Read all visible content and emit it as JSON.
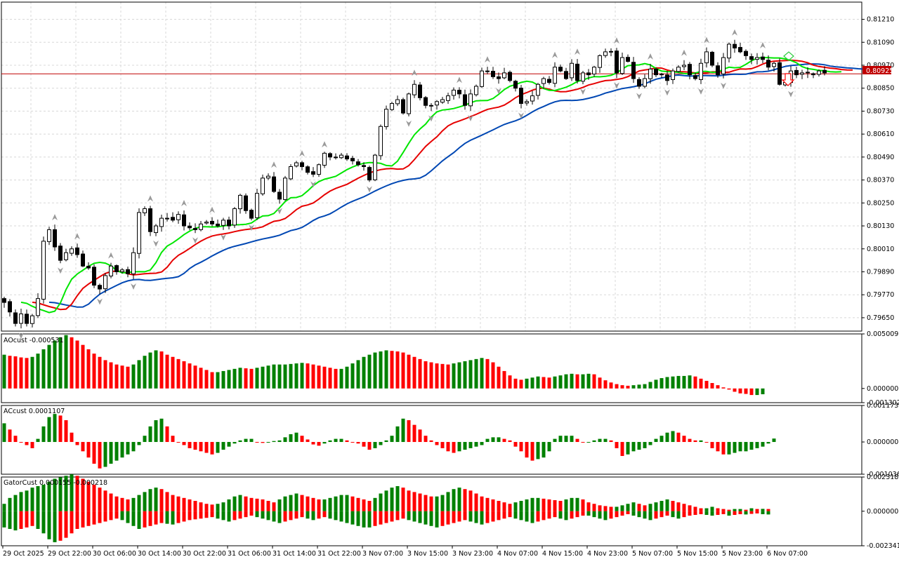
{
  "colors": {
    "bull": "#008000",
    "bear": "#ff0000",
    "lips": "#00e600",
    "teeth": "#e60000",
    "jaw": "#0047b3",
    "price_line": "#c00000",
    "price_tag_bg": "#c00000",
    "grid": "#d8d8d8",
    "fractal": "#9a9a9a",
    "signal_up": "#2ecc40",
    "signal_down": "#ff0000"
  },
  "icons": {
    "signal_up": "diamond-icon",
    "signal_down": "down-arrow-icon",
    "fractal": "fractal-arrow-icon"
  },
  "chart_data": [
    {
      "type": "candlestick",
      "name": "main-price",
      "ylim": [
        0.7958,
        0.813
      ],
      "yticks": [
        "0.81210",
        "0.81090",
        "0.80970",
        "0.80850",
        "0.80730",
        "0.80610",
        "0.80490",
        "0.80370",
        "0.80250",
        "0.80130",
        "0.80010",
        "0.79890",
        "0.79770",
        "0.79650"
      ],
      "current_price": "0.80925",
      "xticks": [
        "29 Oct 2025",
        "29 Oct 22:00",
        "30 Oct 06:00",
        "30 Oct 14:00",
        "30 Oct 22:00",
        "31 Oct 06:00",
        "31 Oct 14:00",
        "31 Oct 22:00",
        "3 Nov 07:00",
        "3 Nov 15:00",
        "3 Nov 23:00",
        "4 Nov 07:00",
        "4 Nov 15:00",
        "4 Nov 23:00",
        "5 Nov 07:00",
        "5 Nov 15:00",
        "5 Nov 23:00",
        "6 Nov 07:00"
      ],
      "close": [
        0.7973,
        0.7968,
        0.7962,
        0.7967,
        0.7962,
        0.7966,
        0.7975,
        0.8005,
        0.8011,
        0.8002,
        0.7995,
        0.7999,
        0.8001,
        0.7998,
        0.7992,
        0.7991,
        0.7982,
        0.798,
        0.7987,
        0.7992,
        0.7989,
        0.799,
        0.7988,
        0.7999,
        0.802,
        0.8022,
        0.801,
        0.8013,
        0.8017,
        0.8017,
        0.8016,
        0.8019,
        0.8013,
        0.8012,
        0.8011,
        0.8014,
        0.8015,
        0.8014,
        0.8013,
        0.8016,
        0.8013,
        0.8022,
        0.8029,
        0.8021,
        0.8017,
        0.803,
        0.8038,
        0.8039,
        0.8031,
        0.8027,
        0.8038,
        0.8044,
        0.8046,
        0.8044,
        0.8041,
        0.804,
        0.8045,
        0.8051,
        0.8049,
        0.8049,
        0.805,
        0.8048,
        0.8047,
        0.8045,
        0.8044,
        0.8037,
        0.805,
        0.8065,
        0.8074,
        0.8077,
        0.8079,
        0.8072,
        0.8082,
        0.8087,
        0.808,
        0.8076,
        0.8076,
        0.8078,
        0.8079,
        0.8081,
        0.8084,
        0.8082,
        0.8076,
        0.8082,
        0.8086,
        0.8094,
        0.8094,
        0.8091,
        0.809,
        0.8093,
        0.8089,
        0.8085,
        0.8077,
        0.8078,
        0.8081,
        0.8087,
        0.809,
        0.8088,
        0.8096,
        0.8094,
        0.809,
        0.8098,
        0.8089,
        0.8093,
        0.8092,
        0.8096,
        0.8102,
        0.8104,
        0.8104,
        0.8093,
        0.8101,
        0.8099,
        0.809,
        0.8086,
        0.809,
        0.8095,
        0.8092,
        0.8092,
        0.8089,
        0.8094,
        0.8096,
        0.8097,
        0.8092,
        0.809,
        0.8098,
        0.8104,
        0.8097,
        0.8092,
        0.8101,
        0.8108,
        0.8106,
        0.8104,
        0.8102,
        0.81,
        0.8101,
        0.81,
        0.8096,
        0.8098,
        0.8087,
        0.8088,
        0.8094,
        0.8092,
        0.8093,
        0.8093,
        0.8092,
        0.8094,
        0.8093
      ]
    },
    {
      "type": "histogram",
      "name": "AOcust",
      "label": "AOcust -0.000531",
      "ylim": [
        -0.001302,
        0.005009
      ],
      "yticks": [
        "0.005009",
        "0.000000",
        "-0.001302"
      ],
      "values": [
        0.0031,
        0.003,
        0.00295,
        0.00285,
        0.0028,
        0.0029,
        0.0032,
        0.0036,
        0.004,
        0.0044,
        0.0047,
        0.0049,
        0.0047,
        0.0044,
        0.004,
        0.0036,
        0.0032,
        0.0029,
        0.0026,
        0.0024,
        0.0022,
        0.0021,
        0.002,
        0.0022,
        0.0026,
        0.003,
        0.0033,
        0.0035,
        0.0034,
        0.0031,
        0.0029,
        0.0027,
        0.0025,
        0.0023,
        0.0021,
        0.0019,
        0.0017,
        0.0015,
        0.0015,
        0.0016,
        0.0017,
        0.0018,
        0.0019,
        0.00185,
        0.0018,
        0.0019,
        0.002,
        0.0021,
        0.0022,
        0.0022,
        0.0022,
        0.00225,
        0.0023,
        0.00235,
        0.0023,
        0.0022,
        0.0021,
        0.002,
        0.0019,
        0.0018,
        0.0018,
        0.002,
        0.0023,
        0.0026,
        0.0029,
        0.0031,
        0.0033,
        0.0034,
        0.0035,
        0.00345,
        0.0034,
        0.0033,
        0.0031,
        0.0029,
        0.0027,
        0.0025,
        0.0024,
        0.0023,
        0.00225,
        0.0022,
        0.0023,
        0.0024,
        0.0025,
        0.0026,
        0.0027,
        0.0028,
        0.0027,
        0.0024,
        0.002,
        0.0016,
        0.0012,
        0.0009,
        0.0008,
        0.0009,
        0.001,
        0.0011,
        0.00105,
        0.001,
        0.0011,
        0.0012,
        0.0013,
        0.00135,
        0.0013,
        0.0013,
        0.00135,
        0.0013,
        0.001,
        0.00075,
        0.00055,
        0.0004,
        0.0003,
        0.00025,
        0.0003,
        0.00035,
        0.0004,
        0.0006,
        0.0008,
        0.00095,
        0.00105,
        0.0011,
        0.00115,
        0.00115,
        0.0012,
        0.0011,
        0.0009,
        0.0007,
        0.0005,
        0.0003,
        0.0001,
        -0.0001,
        -0.0003,
        -0.00045,
        -0.0005,
        -0.0006,
        -0.0006,
        -0.00053
      ]
    },
    {
      "type": "histogram",
      "name": "ACcust",
      "label": "ACcust 0.0001107",
      "ylim": [
        -0.0010366,
        0.0011736
      ],
      "yticks": [
        "0.0011736",
        "0.0000000",
        "-0.0010366"
      ],
      "values": [
        0.0006,
        0.0004,
        0.0002,
        0.0,
        -0.0001,
        -0.0002,
        0.0001,
        0.0005,
        0.0008,
        0.0009,
        0.00085,
        0.0007,
        0.0003,
        -0.0001,
        -0.0003,
        -0.0005,
        -0.0007,
        -0.00085,
        -0.0008,
        -0.0007,
        -0.0006,
        -0.0005,
        -0.0004,
        -0.0003,
        -0.0001,
        0.0002,
        0.0005,
        0.0007,
        0.00075,
        0.0005,
        0.0002,
        0.0,
        -0.0001,
        -0.0002,
        -0.00025,
        -0.0003,
        -0.00035,
        -0.0004,
        -0.00035,
        -0.00025,
        -0.00015,
        -5e-05,
        5e-05,
        0.0001,
        0.0001,
        0.0,
        -3e-05,
        0.0,
        3e-05,
        5e-05,
        0.00015,
        0.00025,
        0.0003,
        0.0002,
        8e-05,
        -8e-05,
        -0.00012,
        -5e-05,
        5e-05,
        0.0001,
        0.0001,
        5e-05,
        0.0,
        -5e-05,
        -0.00015,
        -0.00025,
        -0.0002,
        -0.0001,
        5e-05,
        0.0002,
        0.0005,
        0.00075,
        0.0007,
        0.00055,
        0.0004,
        0.0002,
        5e-05,
        -0.0001,
        -0.0002,
        -0.0003,
        -0.00035,
        -0.0003,
        -0.00025,
        -0.0002,
        -0.00015,
        -0.0001,
        0.0001,
        0.00015,
        0.00015,
        0.0001,
        5e-05,
        -0.00015,
        -0.0003,
        -0.0005,
        -0.0006,
        -0.00055,
        -0.0005,
        -0.0003,
        0.0001,
        0.0002,
        0.0002,
        0.0002,
        0.0001,
        0.0,
        0.0,
        5e-05,
        0.0001,
        0.0001,
        5e-05,
        -0.0002,
        -0.00045,
        -0.0004,
        -0.0003,
        -0.00025,
        -0.0002,
        -0.0001,
        0.0001,
        0.0002,
        0.0003,
        0.00035,
        0.0003,
        0.0002,
        0.0001,
        5e-05,
        5e-05,
        0.0,
        -0.0002,
        -0.0003,
        -0.0004,
        -0.0004,
        -0.00035,
        -0.0003,
        -0.0003,
        -0.00025,
        -0.0002,
        -0.00015,
        -5e-05,
        0.00011
      ]
    },
    {
      "type": "histogram",
      "name": "GatorCust",
      "label": "GatorCust 0.000155 -0.000218",
      "ylim": [
        -0.002341,
        0.002318
      ],
      "yticks": [
        "0.002318",
        "0.000000",
        "-0.002341"
      ],
      "upper": [
        0.0005,
        0.0009,
        0.0011,
        0.0013,
        0.0014,
        0.0016,
        0.0017,
        0.0018,
        0.002,
        0.0022,
        0.0023,
        0.0024,
        0.0025,
        0.0024,
        0.0022,
        0.002,
        0.0018,
        0.0016,
        0.0014,
        0.0012,
        0.001,
        0.0009,
        0.0008,
        0.0009,
        0.0011,
        0.0013,
        0.0015,
        0.0016,
        0.0015,
        0.0013,
        0.0011,
        0.001,
        0.0009,
        0.0008,
        0.0007,
        0.0006,
        0.0005,
        0.00045,
        0.0005,
        0.0006,
        0.0008,
        0.001,
        0.0011,
        0.001,
        0.0009,
        0.00085,
        0.0008,
        0.0007,
        0.0006,
        0.0008,
        0.001,
        0.0011,
        0.0012,
        0.0011,
        0.001,
        0.0009,
        0.0008,
        0.0008,
        0.0009,
        0.001,
        0.0011,
        0.0011,
        0.001,
        0.0009,
        0.0008,
        0.0007,
        0.0009,
        0.0012,
        0.0014,
        0.0016,
        0.0017,
        0.0016,
        0.0014,
        0.0013,
        0.0012,
        0.0011,
        0.001,
        0.001,
        0.0011,
        0.0013,
        0.0015,
        0.0016,
        0.0015,
        0.0014,
        0.0012,
        0.001,
        0.0009,
        0.0008,
        0.0007,
        0.0006,
        0.0005,
        0.0006,
        0.0007,
        0.0008,
        0.0009,
        0.0009,
        0.00085,
        0.0008,
        0.00075,
        0.0007,
        0.0008,
        0.0009,
        0.0009,
        0.0008,
        0.0006,
        0.0005,
        0.0004,
        0.00035,
        0.0003,
        0.0003,
        0.0004,
        0.0005,
        0.0006,
        0.0005,
        0.0004,
        0.0005,
        0.0006,
        0.0007,
        0.0008,
        0.0007,
        0.0006,
        0.0005,
        0.0004,
        0.0003,
        0.0002,
        0.0002,
        0.0003,
        0.0002,
        0.00015,
        0.0001,
        0.00015,
        0.00015,
        0.0001,
        0.0002,
        0.00015,
        0.00016,
        0.00015
      ],
      "lower": [
        -0.0011,
        -0.0012,
        -0.0013,
        -0.0012,
        -0.0011,
        -0.001,
        -0.0012,
        -0.0015,
        -0.0019,
        -0.0021,
        -0.002,
        -0.0018,
        -0.0015,
        -0.0012,
        -0.0011,
        -0.001,
        -0.0009,
        -0.0008,
        -0.0007,
        -0.0006,
        -0.0005,
        -0.0006,
        -0.0008,
        -0.001,
        -0.0012,
        -0.0011,
        -0.001,
        -0.0009,
        -0.0008,
        -0.00085,
        -0.0009,
        -0.0008,
        -0.0007,
        -0.0006,
        -0.00055,
        -0.0005,
        -0.00045,
        -0.0004,
        -0.0005,
        -0.0006,
        -0.0007,
        -0.0006,
        -0.0005,
        -0.0004,
        -0.0003,
        -0.0004,
        -0.0005,
        -0.0006,
        -0.0007,
        -0.0008,
        -0.0007,
        -0.0006,
        -0.0005,
        -0.0004,
        -0.0005,
        -0.0006,
        -0.0005,
        -0.0004,
        -0.0005,
        -0.0006,
        -0.0007,
        -0.0008,
        -0.0009,
        -0.001,
        -0.0011,
        -0.0011,
        -0.001,
        -0.0009,
        -0.0008,
        -0.0007,
        -0.0006,
        -0.0005,
        -0.0006,
        -0.0007,
        -0.0008,
        -0.0009,
        -0.001,
        -0.0011,
        -0.001,
        -0.0009,
        -0.0008,
        -0.0007,
        -0.0006,
        -0.0007,
        -0.0008,
        -0.0009,
        -0.0008,
        -0.0007,
        -0.0006,
        -0.0005,
        -0.0004,
        -0.0005,
        -0.0006,
        -0.0007,
        -0.0008,
        -0.0007,
        -0.0006,
        -0.0005,
        -0.0004,
        -0.0005,
        -0.0006,
        -0.0005,
        -0.0004,
        -0.0003,
        -0.0003,
        -0.0004,
        -0.0005,
        -0.0006,
        -0.0005,
        -0.0004,
        -0.0003,
        -0.0002,
        -0.0003,
        -0.0004,
        -0.0005,
        -0.0006,
        -0.0005,
        -0.0004,
        -0.0003,
        -0.0004,
        -0.0005,
        -0.0004,
        -0.0003,
        -0.00025,
        -0.0002,
        -0.00025,
        -0.0003,
        -0.00025,
        -0.0002,
        -0.0003,
        -0.00025,
        -0.0002,
        -0.00022,
        -0.00018,
        -0.00015,
        -0.0002,
        -0.00022
      ]
    }
  ]
}
